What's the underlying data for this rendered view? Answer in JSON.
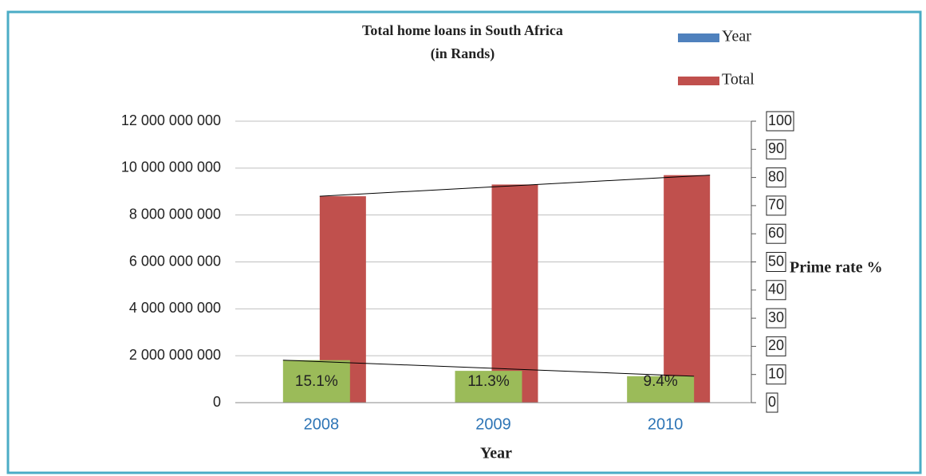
{
  "chart_data": {
    "type": "bar",
    "title": [
      "Total home loans in South Africa",
      "(in Rands)"
    ],
    "categories": [
      "2008",
      "2009",
      "2010"
    ],
    "xlabel": "Year",
    "y2label": "Prime rate %",
    "series": [
      {
        "name": "Year",
        "color": "#4f81bd",
        "values": [
          2008,
          2009,
          2010
        ]
      },
      {
        "name": "Total",
        "color": "#c0504d",
        "values": [
          8800000000,
          9300000000,
          9700000000
        ]
      },
      {
        "color": "#9bbb59",
        "axis": "y2",
        "values": [
          15.1,
          11.3,
          9.4
        ],
        "value_labels": [
          "15.1%",
          "11.3%",
          "9.4%"
        ]
      }
    ],
    "ylim": [
      0,
      12000000000
    ],
    "yticks": [
      0,
      {
        "value": 2000000000,
        "label": "2 000 000 000"
      },
      {
        "value": 4000000000,
        "label": "4 000 000 000"
      },
      {
        "value": 6000000000,
        "label": "6 000 000 000"
      },
      {
        "value": 8000000000,
        "label": "8 000 000 000"
      },
      {
        "value": 10000000000,
        "label": "10 000 000 000"
      },
      {
        "value": 12000000000,
        "label": "12 000 000 000"
      }
    ],
    "y2lim": [
      0,
      100
    ],
    "y2ticks": [
      0,
      10,
      20,
      30,
      40,
      50,
      60,
      70,
      80,
      90,
      100
    ],
    "grid": true,
    "legend": "top-right"
  }
}
